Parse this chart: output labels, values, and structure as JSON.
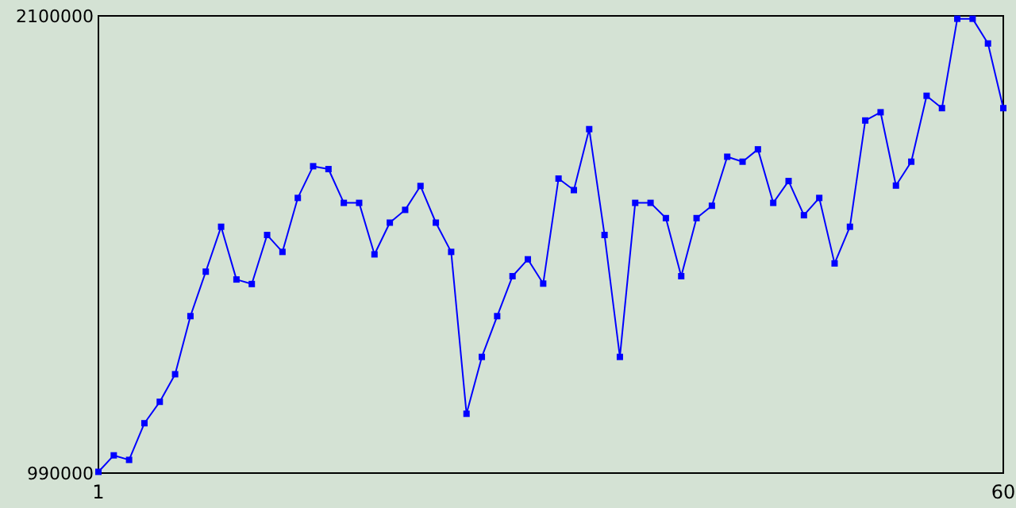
{
  "chart_data": {
    "type": "line",
    "x": [
      1,
      2,
      3,
      4,
      5,
      6,
      7,
      8,
      9,
      10,
      11,
      12,
      13,
      14,
      15,
      16,
      17,
      18,
      19,
      20,
      21,
      22,
      23,
      24,
      25,
      26,
      27,
      28,
      29,
      30,
      31,
      32,
      33,
      34,
      35,
      36,
      37,
      38,
      39,
      40,
      41,
      42,
      43,
      44,
      45,
      46,
      47,
      48,
      49,
      50,
      51,
      52,
      53,
      54,
      55,
      56,
      57,
      58,
      59,
      60
    ],
    "series": [
      {
        "color": "#0000ff",
        "values": [
          993000,
          1033000,
          1022000,
          1111000,
          1163000,
          1230000,
          1371000,
          1479000,
          1588000,
          1460000,
          1449000,
          1568000,
          1527000,
          1658000,
          1735000,
          1728000,
          1646000,
          1646000,
          1521000,
          1598000,
          1629000,
          1687000,
          1598000,
          1527000,
          1134000,
          1272000,
          1371000,
          1468000,
          1509000,
          1450000,
          1705000,
          1677000,
          1825000,
          1568000,
          1272000,
          1646000,
          1646000,
          1609000,
          1468000,
          1609000,
          1639000,
          1758000,
          1746000,
          1776000,
          1646000,
          1699000,
          1616000,
          1658000,
          1499000,
          1588000,
          1846000,
          1866000,
          1688000,
          1746000,
          1906000,
          1876000,
          2093000,
          2093000,
          2033000,
          1876000
        ]
      }
    ],
    "xlim": [
      1,
      60
    ],
    "xticks": [
      1,
      60
    ],
    "ylim": [
      990000,
      2100000
    ],
    "yticks": [
      990000,
      2100000
    ],
    "marker": "square",
    "line_style": "solid"
  }
}
